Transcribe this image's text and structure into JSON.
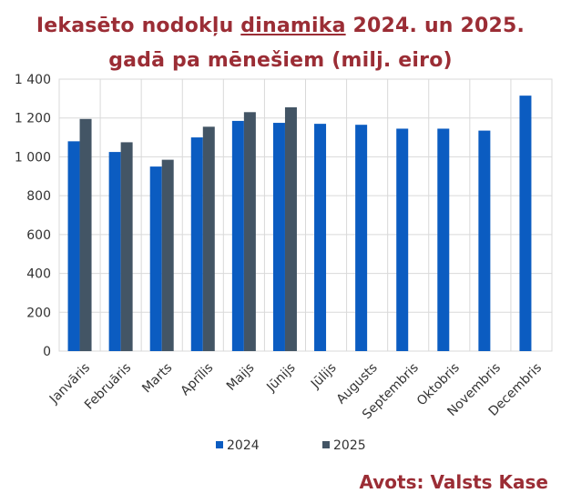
{
  "title": {
    "line1_before": "Iekasēto nodokļu ",
    "line1_underlined": "dinamika",
    "line1_after": " 2024. un 2025.",
    "line2": "gadā pa mēnešiem (milj. eiro)"
  },
  "source_label": "Avots: Valsts Kase",
  "colors": {
    "title": "#9b2d35",
    "series_2024": "#0b5cc1",
    "series_2025": "#435565"
  },
  "chart_data": {
    "type": "bar",
    "categories": [
      "Janvāris",
      "Februāris",
      "Marts",
      "Aprīlis",
      "Maijs",
      "Jūnijs",
      "Jūlijs",
      "Augusts",
      "Septembris",
      "Oktobris",
      "Novembris",
      "Decembris"
    ],
    "series": [
      {
        "name": "2024",
        "color": "#0b5cc1",
        "values": [
          1080,
          1025,
          950,
          1100,
          1185,
          1175,
          1170,
          1165,
          1145,
          1145,
          1135,
          1315
        ]
      },
      {
        "name": "2025",
        "color": "#435565",
        "values": [
          1195,
          1075,
          985,
          1155,
          1230,
          1255,
          null,
          null,
          null,
          null,
          null,
          null
        ]
      }
    ],
    "ylim": [
      0,
      1400
    ],
    "yticks": [
      0,
      200,
      400,
      600,
      800,
      1000,
      1200,
      1400
    ],
    "ytick_labels": [
      "0",
      "200",
      "400",
      "600",
      "800",
      "1 000",
      "1 200",
      "1 400"
    ],
    "grid": true,
    "legend_position": "bottom"
  }
}
